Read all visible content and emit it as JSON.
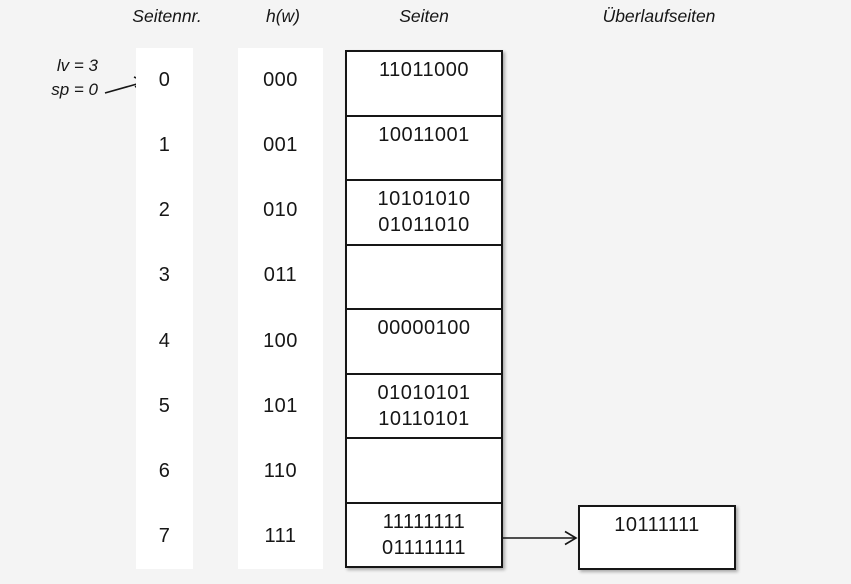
{
  "headers": {
    "seitennr": "Seitennr.",
    "hw": "h(w)",
    "seiten": "Seiten",
    "ueberlaufseiten": "Überlaufseiten"
  },
  "annotation": {
    "lv": "lv = 3",
    "sp": "sp = 0",
    "points_to_page": "0"
  },
  "table": {
    "rows": [
      {
        "page_nr": "0",
        "hash": "000",
        "entries": [
          "11011000"
        ]
      },
      {
        "page_nr": "1",
        "hash": "001",
        "entries": [
          "10011001"
        ]
      },
      {
        "page_nr": "2",
        "hash": "010",
        "entries": [
          "10101010",
          "01011010"
        ]
      },
      {
        "page_nr": "3",
        "hash": "011",
        "entries": []
      },
      {
        "page_nr": "4",
        "hash": "100",
        "entries": [
          "00000100"
        ]
      },
      {
        "page_nr": "5",
        "hash": "101",
        "entries": [
          "01010101",
          "10110101"
        ]
      },
      {
        "page_nr": "6",
        "hash": "110",
        "entries": []
      },
      {
        "page_nr": "7",
        "hash": "111",
        "entries": [
          "11111111",
          "01111111"
        ]
      }
    ]
  },
  "overflow_pages": [
    {
      "linked_page_nr": "7",
      "entries": [
        "10111111"
      ]
    }
  ],
  "colors": {
    "background": "#f4f4f4",
    "cell_background": "#ffffff",
    "line": "#161616"
  }
}
